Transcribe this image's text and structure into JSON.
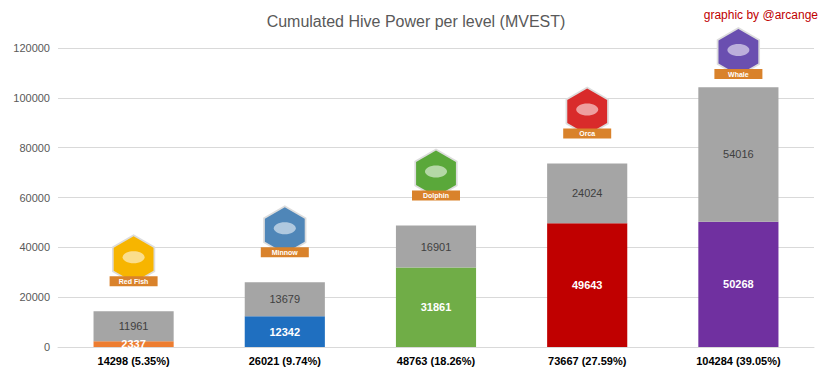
{
  "chart_data": {
    "type": "bar",
    "title": "Cumulated Hive Power per level (MVEST)",
    "annotations": {
      "credit": "graphic by @arcange",
      "levels": [
        "Red Fish",
        "Minnow",
        "Dolphin",
        "Orca",
        "Whale"
      ]
    },
    "categories": [
      "14298 (5.35%)",
      "26021 (9.74%)",
      "48763 (18.26%)",
      "73667 (27.59%)",
      "104284 (39.05%)"
    ],
    "series": [
      {
        "values": [
          2337,
          12342,
          31861,
          49643,
          50268
        ],
        "colors": [
          "#ed7d31",
          "#1f6fc0",
          "#70ad47",
          "#c00000",
          "#7030a0"
        ]
      },
      {
        "values": [
          11961,
          13679,
          16901,
          24024,
          54016
        ],
        "color": "#a5a5a5"
      }
    ],
    "ylim": [
      0,
      120000
    ],
    "yticks": [
      0,
      20000,
      40000,
      60000,
      80000,
      100000,
      120000
    ],
    "grid": true,
    "stacked": true,
    "data_labels": true
  }
}
